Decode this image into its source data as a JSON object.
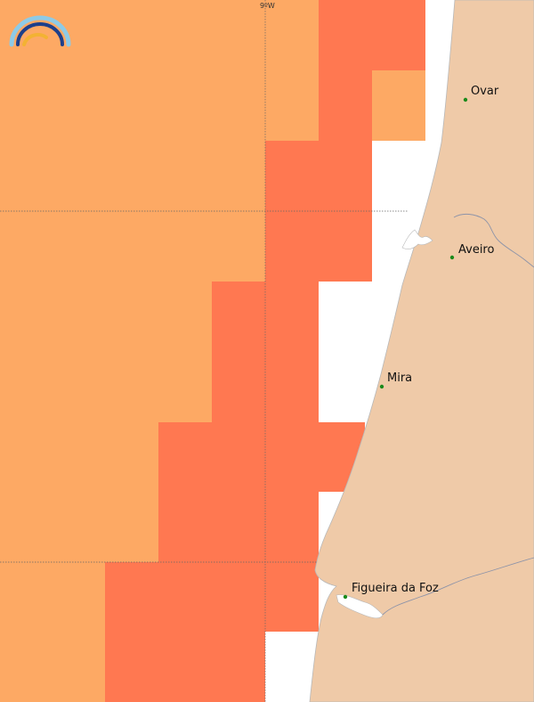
{
  "map": {
    "colors": {
      "sea": "#ffffff",
      "zone_light": "#fda964",
      "zone_dark": "#ff7851",
      "land": "#efcaa8",
      "coastline": "#b8b8b8",
      "river": "#8e94a8",
      "grid": "#666666",
      "city_dot": "#1b8a1b"
    },
    "grid": {
      "meridian_label": "9ºW"
    },
    "cities": [
      {
        "name": "Ovar"
      },
      {
        "name": "Aveiro"
      },
      {
        "name": "Mira"
      },
      {
        "name": "Figueira da Foz"
      }
    ],
    "logo": {
      "name": "rainbow-logo",
      "colors": [
        "#8ecae6",
        "#1d3f8a",
        "#f3b233"
      ]
    }
  }
}
